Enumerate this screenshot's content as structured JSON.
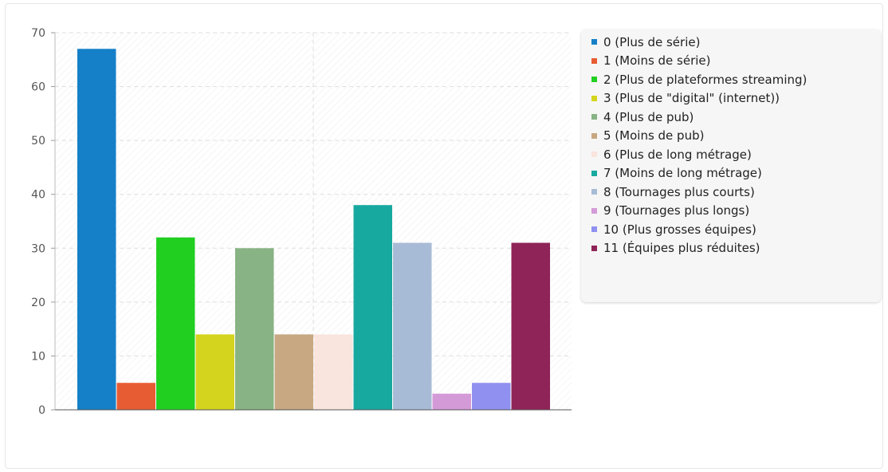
{
  "chart_data": {
    "type": "bar",
    "ylim": [
      0,
      70
    ],
    "yticks": [
      0,
      10,
      20,
      30,
      40,
      50,
      60,
      70
    ],
    "grid": true,
    "legend_position": "right",
    "series": [
      {
        "name": "0 (Plus de série)",
        "value": 67,
        "color": "#1580c8"
      },
      {
        "name": "1 (Moins de série)",
        "value": 5,
        "color": "#e85c33"
      },
      {
        "name": "2 (Plus de plateformes streaming)",
        "value": 32,
        "color": "#21cf21"
      },
      {
        "name": "3 (Plus de \"digital\" (internet))",
        "value": 14,
        "color": "#d4d41f"
      },
      {
        "name": "4 (Plus de pub)",
        "value": 30,
        "color": "#88b384"
      },
      {
        "name": "5 (Moins de pub)",
        "value": 14,
        "color": "#c8a882"
      },
      {
        "name": "6 (Plus de long métrage)",
        "value": 14,
        "color": "#f9e5dd"
      },
      {
        "name": "7 (Moins de long métrage)",
        "value": 38,
        "color": "#17a9a0"
      },
      {
        "name": "8 (Tournages plus courts)",
        "value": 31,
        "color": "#a8bbd6"
      },
      {
        "name": "9 (Tournages plus longs)",
        "value": 3,
        "color": "#d49ad8"
      },
      {
        "name": "10 (Plus grosses équipes)",
        "value": 5,
        "color": "#9090f0"
      },
      {
        "name": "11 (Équipes plus réduites)",
        "value": 31,
        "color": "#8f2458"
      }
    ]
  }
}
